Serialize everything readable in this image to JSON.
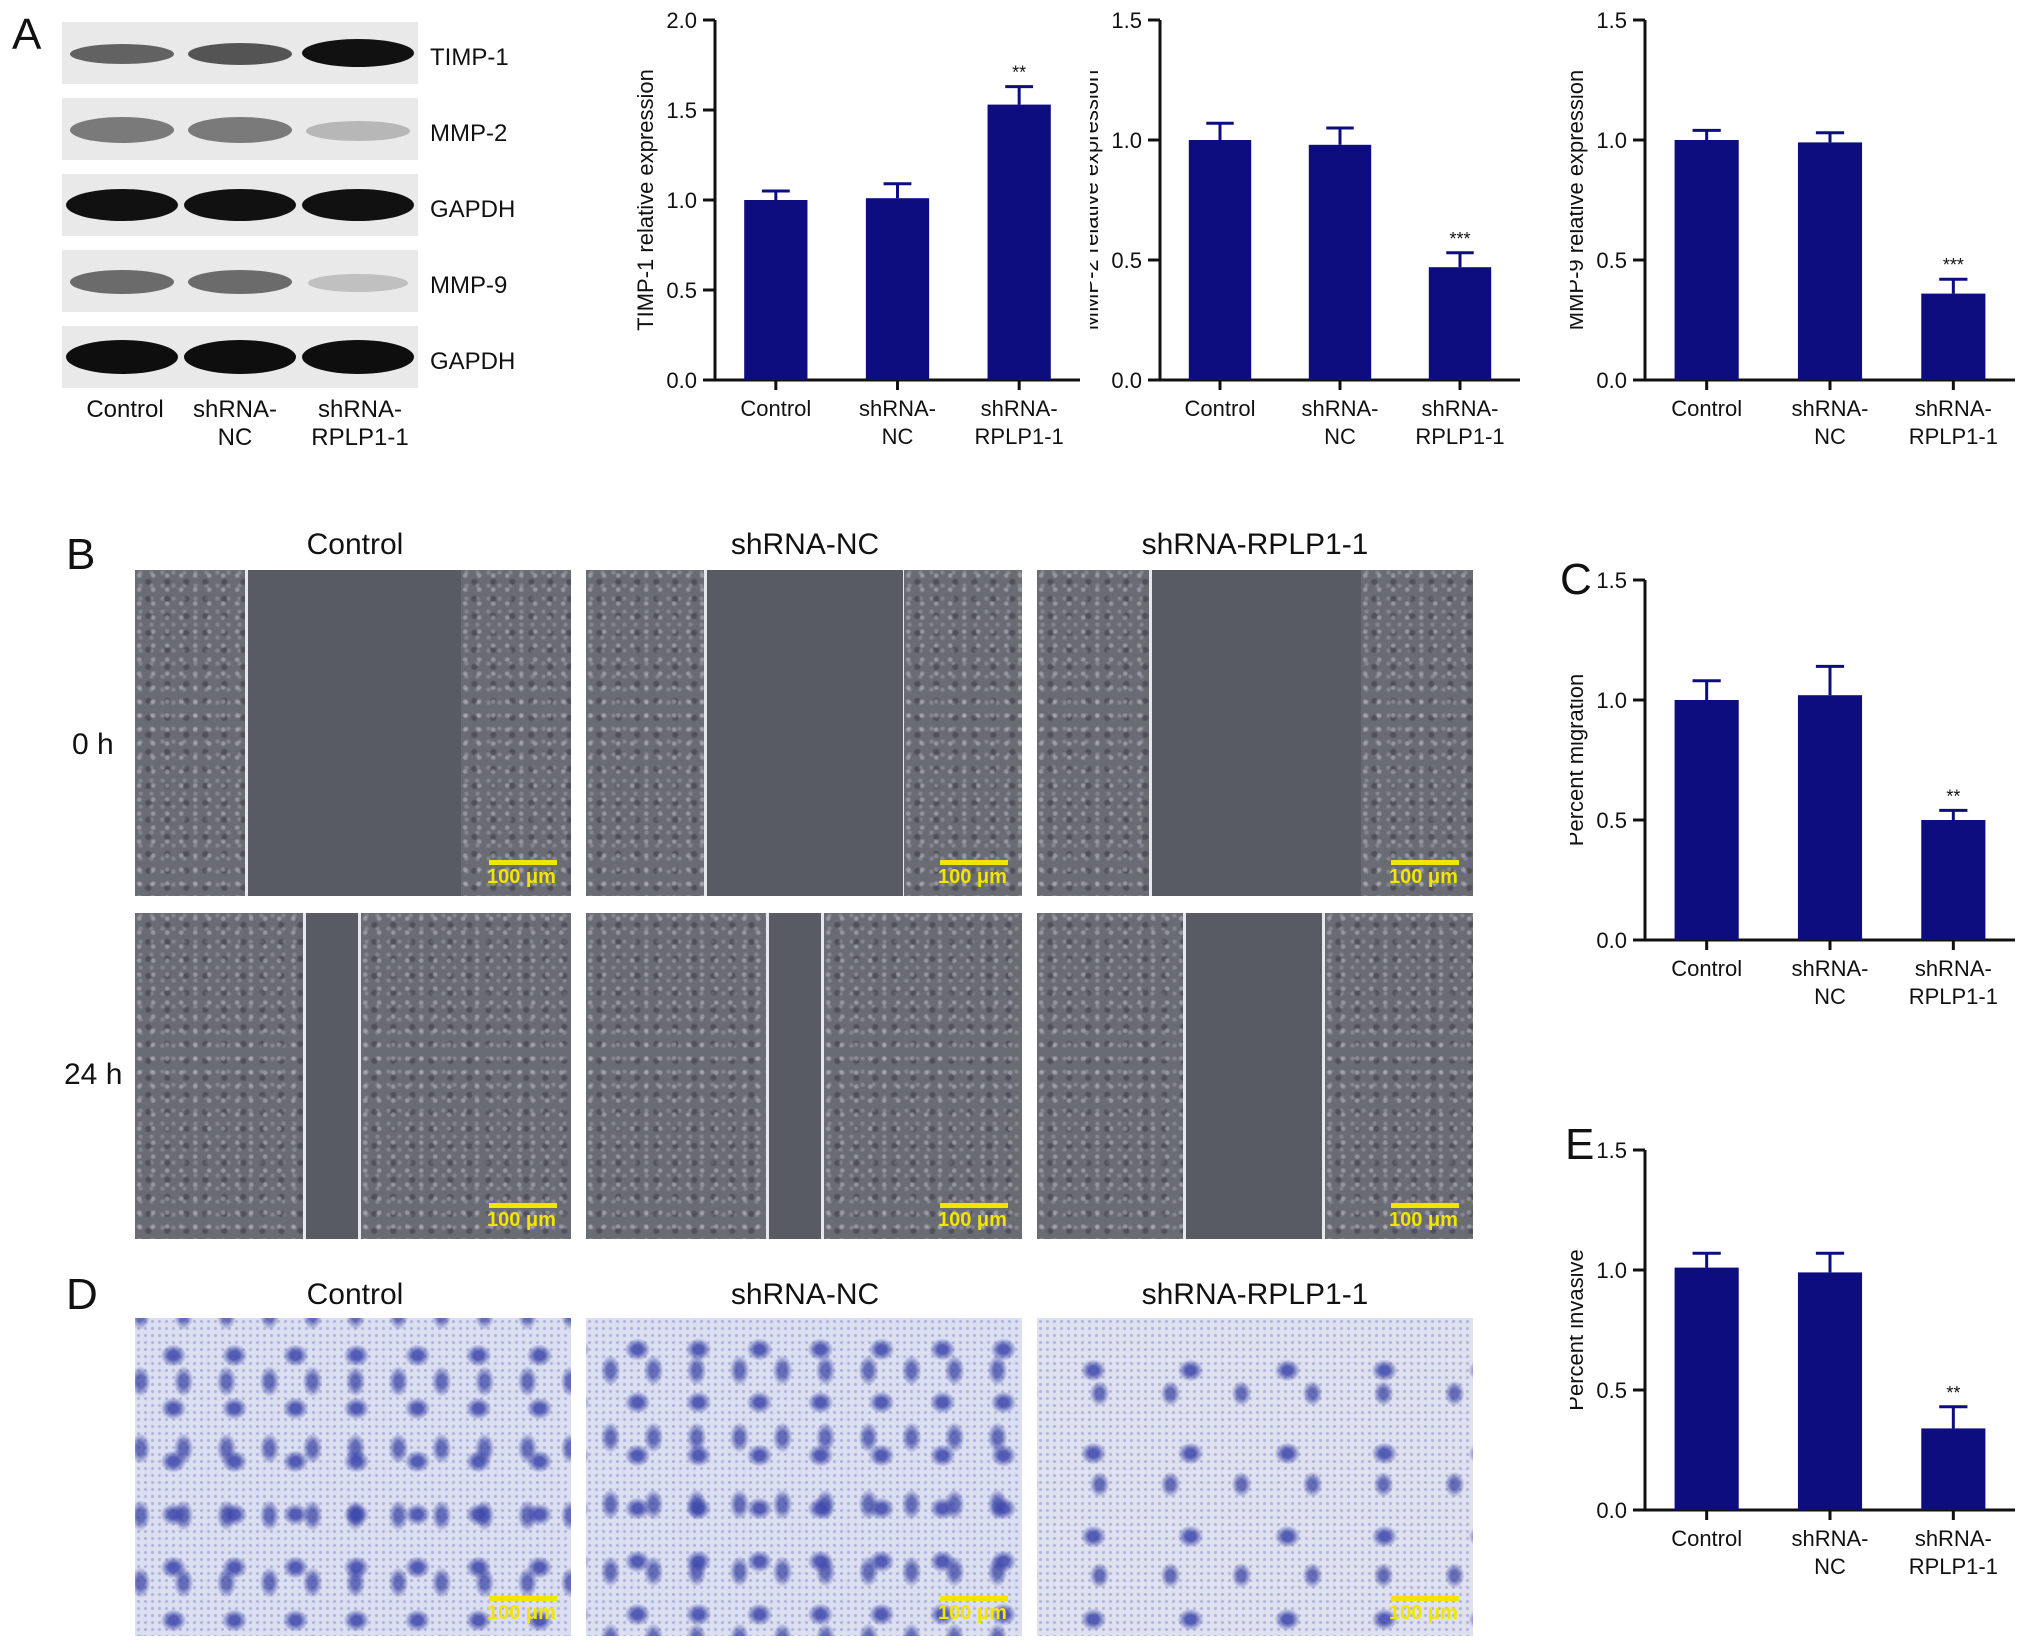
{
  "panels": {
    "a": "A",
    "b": "B",
    "c": "C",
    "d": "D",
    "e": "E"
  },
  "western_blot": {
    "bands": [
      "TIMP-1",
      "MMP-2",
      "GAPDH",
      "MMP-9",
      "GAPDH"
    ],
    "lanes": [
      "Control",
      "shRNA-NC",
      "shRNA-RPLP1-1"
    ]
  },
  "wound_healing": {
    "columns": [
      "Control",
      "shRNA-NC",
      "shRNA-RPLP1-1"
    ],
    "rows": [
      "0 h",
      "24 h"
    ],
    "scale_bar": "100 μm"
  },
  "invasion": {
    "columns": [
      "Control",
      "shRNA-NC",
      "shRNA-RPLP1-1"
    ],
    "scale_bar": "100 μm"
  },
  "colors": {
    "bar": "#0d0d80",
    "axis": "#111111",
    "scale_bar": "#f2e600"
  },
  "chart_data": [
    {
      "id": "timp1",
      "type": "bar",
      "categories": [
        "Control",
        "shRNA-NC",
        "shRNA-RPLP1-1"
      ],
      "values": [
        1.0,
        1.01,
        1.53
      ],
      "errors": [
        0.05,
        0.08,
        0.1
      ],
      "significance": [
        "",
        "",
        "**"
      ],
      "ylabel": "TIMP-1 relative expression",
      "ylim": [
        0,
        2.0
      ],
      "yticks": [
        "0.0",
        "0.5",
        "1.0",
        "1.5",
        "2.0"
      ]
    },
    {
      "id": "mmp2",
      "type": "bar",
      "categories": [
        "Control",
        "shRNA-NC",
        "shRNA-RPLP1-1"
      ],
      "values": [
        1.0,
        0.98,
        0.47
      ],
      "errors": [
        0.07,
        0.07,
        0.06
      ],
      "significance": [
        "",
        "",
        "***"
      ],
      "ylabel": "MMP-2 relative expression",
      "ylim": [
        0,
        1.5
      ],
      "yticks": [
        "0.0",
        "0.5",
        "1.0",
        "1.5"
      ]
    },
    {
      "id": "mmp9",
      "type": "bar",
      "categories": [
        "Control",
        "shRNA-NC",
        "shRNA-RPLP1-1"
      ],
      "values": [
        1.0,
        0.99,
        0.36
      ],
      "errors": [
        0.04,
        0.04,
        0.06
      ],
      "significance": [
        "",
        "",
        "***"
      ],
      "ylabel": "MMP-9 relative expression",
      "ylim": [
        0,
        1.5
      ],
      "yticks": [
        "0.0",
        "0.5",
        "1.0",
        "1.5"
      ]
    },
    {
      "id": "migration",
      "type": "bar",
      "categories": [
        "Control",
        "shRNA-NC",
        "shRNA-RPLP1-1"
      ],
      "values": [
        1.0,
        1.02,
        0.5
      ],
      "errors": [
        0.08,
        0.12,
        0.04
      ],
      "significance": [
        "",
        "",
        "**"
      ],
      "ylabel": "Percent migration",
      "ylim": [
        0,
        1.5
      ],
      "yticks": [
        "0.0",
        "0.5",
        "1.0",
        "1.5"
      ]
    },
    {
      "id": "invasive",
      "type": "bar",
      "categories": [
        "Control",
        "shRNA-NC",
        "shRNA-RPLP1-1"
      ],
      "values": [
        1.01,
        0.99,
        0.34
      ],
      "errors": [
        0.06,
        0.08,
        0.09
      ],
      "significance": [
        "",
        "",
        "**"
      ],
      "ylabel": "Percent invasive",
      "ylim": [
        0,
        1.5
      ],
      "yticks": [
        "0.0",
        "0.5",
        "1.0",
        "1.5"
      ]
    }
  ]
}
